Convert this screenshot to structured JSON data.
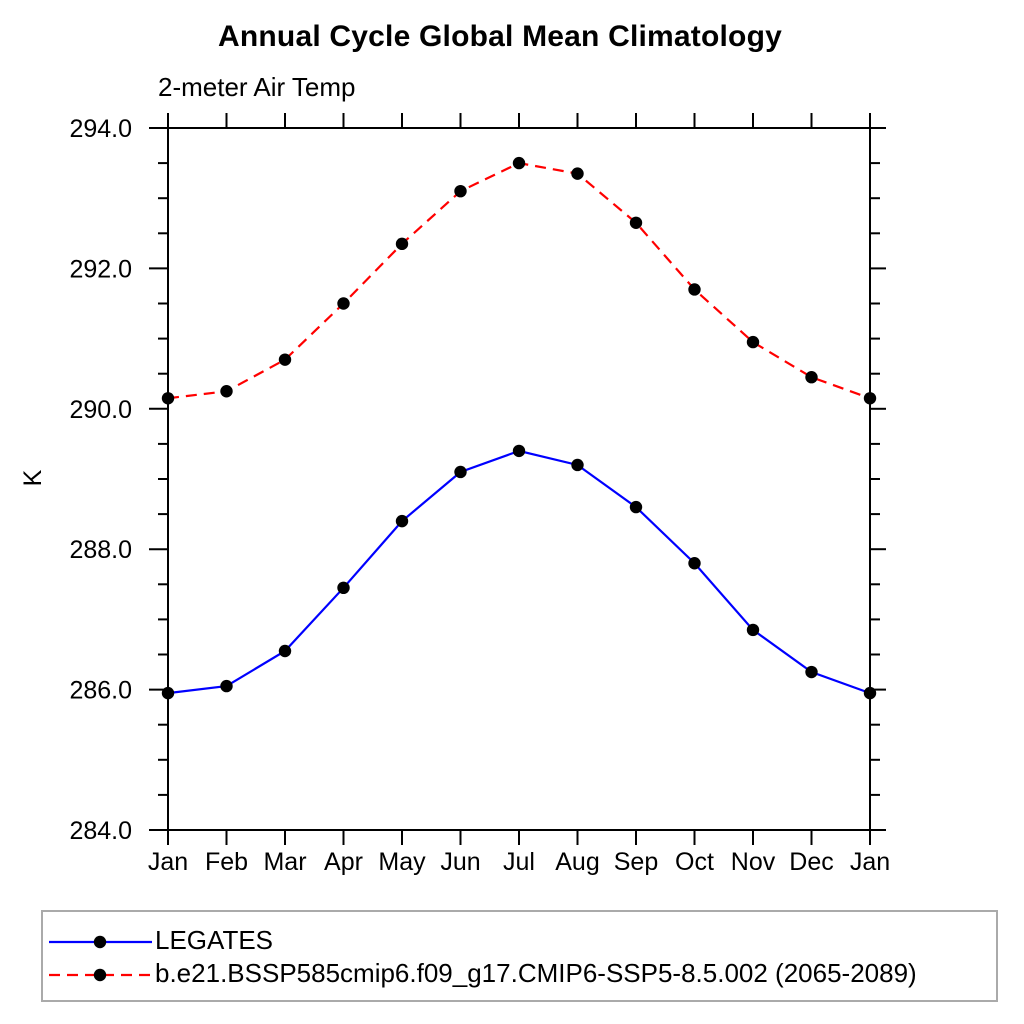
{
  "chart_data": {
    "type": "line",
    "title": "Annual Cycle Global Mean Climatology",
    "subtitle": "2-meter Air Temp",
    "ylabel": "K",
    "xlabel": "",
    "categories": [
      "Jan",
      "Feb",
      "Mar",
      "Apr",
      "May",
      "Jun",
      "Jul",
      "Aug",
      "Sep",
      "Oct",
      "Nov",
      "Dec",
      "Jan"
    ],
    "ylim": [
      284.0,
      294.0
    ],
    "y_major_ticks": [
      284.0,
      286.0,
      288.0,
      290.0,
      292.0,
      294.0
    ],
    "y_tick_labels": [
      "284.0",
      "286.0",
      "288.0",
      "290.0",
      "292.0",
      "294.0"
    ],
    "y_minor_step": 0.5,
    "grid": false,
    "legend_position": "bottom-left-box",
    "series": [
      {
        "name": "LEGATES",
        "color": "#0000ff",
        "style": "solid",
        "marker": "circle",
        "marker_color": "#000000",
        "values": [
          285.95,
          286.05,
          286.55,
          287.45,
          288.4,
          289.1,
          289.4,
          289.2,
          288.6,
          287.8,
          286.85,
          286.25,
          285.95
        ]
      },
      {
        "name": "b.e21.BSSP585cmip6.f09_g17.CMIP6-SSP5-8.5.002 (2065-2089)",
        "color": "#ff0000",
        "style": "dashed",
        "marker": "circle",
        "marker_color": "#000000",
        "values": [
          290.15,
          290.25,
          290.7,
          291.5,
          292.35,
          293.1,
          293.5,
          293.35,
          292.65,
          291.7,
          290.95,
          290.45,
          290.15
        ]
      }
    ]
  },
  "colors": {
    "axis": "#000000",
    "tick_label": "#000000",
    "legend_border": "#aaaaaa",
    "series_blue": "#0000ff",
    "series_red": "#ff0000",
    "marker": "#000000"
  }
}
